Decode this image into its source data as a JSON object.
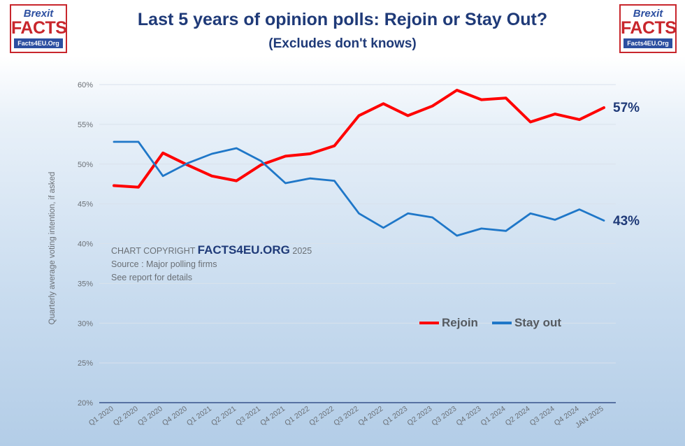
{
  "header": {
    "title": "Last 5 years of opinion polls: Rejoin or Stay Out?",
    "subtitle": "(Excludes don't knows)"
  },
  "logo": {
    "line1": "Brexit",
    "line2": "FACTS",
    "line3": "Facts4EU.Org"
  },
  "annotation": {
    "prefix": "CHART COPYRIGHT",
    "brand": "FACTS4EU.ORG",
    "year": "2025",
    "source": "Source : Major polling firms",
    "note": "See report for details"
  },
  "chart_data": {
    "type": "line",
    "title": "Last 5 years of opinion polls: Rejoin or Stay Out?",
    "subtitle": "(Excludes don't knows)",
    "xlabel": "",
    "ylabel": "Quarterly average voting intention, if asked",
    "ylim": [
      20,
      60
    ],
    "yticks": [
      20,
      25,
      30,
      35,
      40,
      45,
      50,
      55,
      60
    ],
    "ytick_labels": [
      "20%",
      "25%",
      "30%",
      "35%",
      "40%",
      "45%",
      "50%",
      "55%",
      "60%"
    ],
    "grid": true,
    "legend_position": "right",
    "categories": [
      "Q1 2020",
      "Q2 2020",
      "Q3 2020",
      "Q4 2020",
      "Q1 2021",
      "Q2 2021",
      "Q3 2021",
      "Q4 2021",
      "Q1 2022",
      "Q2 2022",
      "Q3 2022",
      "Q4 2022",
      "Q1 2023",
      "Q2 2023",
      "Q3 2023",
      "Q4 2023",
      "Q1 2024",
      "Q2 2024",
      "Q3 2024",
      "Q4 2024",
      "JAN 2025"
    ],
    "series": [
      {
        "name": "Rejoin",
        "color": "#ff0000",
        "values": [
          47.3,
          47.1,
          51.4,
          49.9,
          48.5,
          47.9,
          49.9,
          51.0,
          51.3,
          52.3,
          56.1,
          57.6,
          56.1,
          57.3,
          59.3,
          58.1,
          58.3,
          55.3,
          56.3,
          55.6,
          57.1
        ],
        "end_label": "57%"
      },
      {
        "name": "Stay out",
        "color": "#1f77c8",
        "values": [
          52.8,
          52.8,
          48.5,
          50.1,
          51.3,
          52.0,
          50.4,
          47.6,
          48.2,
          47.9,
          43.8,
          42.0,
          43.8,
          43.3,
          41.0,
          41.9,
          41.6,
          43.8,
          43.0,
          44.3,
          42.9
        ],
        "end_label": "43%"
      }
    ]
  }
}
